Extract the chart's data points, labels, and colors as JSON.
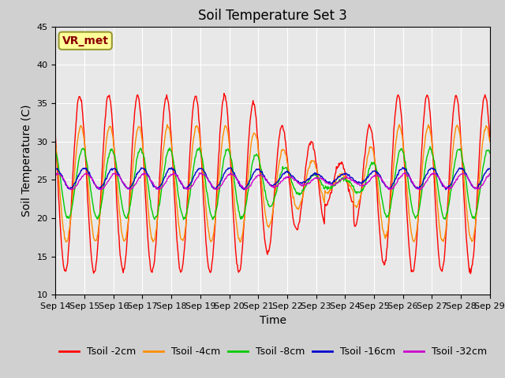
{
  "title": "Soil Temperature Set 3",
  "xlabel": "Time",
  "ylabel": "Soil Temperature (C)",
  "ylim": [
    10,
    45
  ],
  "x_tick_labels": [
    "Sep 14",
    "Sep 15",
    "Sep 16",
    "Sep 17",
    "Sep 18",
    "Sep 19",
    "Sep 20",
    "Sep 21",
    "Sep 22",
    "Sep 23",
    "Sep 24",
    "Sep 25",
    "Sep 26",
    "Sep 27",
    "Sep 28",
    "Sep 29"
  ],
  "series_colors": [
    "#ff0000",
    "#ff8c00",
    "#00cc00",
    "#0000cc",
    "#cc00cc"
  ],
  "series_labels": [
    "Tsoil -2cm",
    "Tsoil -4cm",
    "Tsoil -8cm",
    "Tsoil -16cm",
    "Tsoil -32cm"
  ],
  "fig_facecolor": "#d0d0d0",
  "ax_facecolor": "#e8e8e8",
  "annotation_text": "VR_met",
  "annotation_fg": "#8b0000",
  "annotation_bg": "#ffff99",
  "annotation_border": "#999933",
  "yticks": [
    10,
    15,
    20,
    25,
    30,
    35,
    40,
    45
  ],
  "title_fontsize": 12,
  "axis_label_fontsize": 10,
  "tick_fontsize": 8,
  "legend_fontsize": 9
}
